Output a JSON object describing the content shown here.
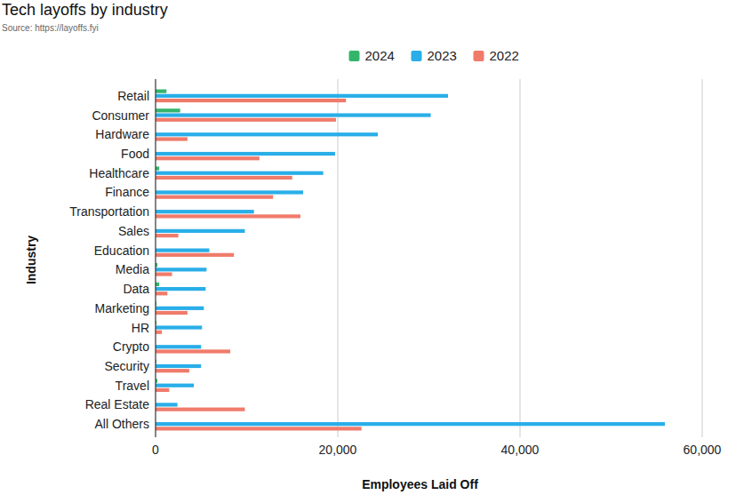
{
  "chart_data": {
    "type": "bar",
    "orientation": "horizontal",
    "title": "Tech layoffs by industry",
    "subtitle": "Source: https://layoffs.fyi",
    "x_label": "Employees Laid Off",
    "y_label": "Industry",
    "categories": [
      "Retail",
      "Consumer",
      "Hardware",
      "Food",
      "Healthcare",
      "Finance",
      "Transportation",
      "Sales",
      "Education",
      "Media",
      "Data",
      "Marketing",
      "HR",
      "Crypto",
      "Security",
      "Travel",
      "Real Estate",
      "All Others"
    ],
    "series": [
      {
        "name": "2024",
        "color": "#34b56c",
        "values": [
          1200,
          2700,
          0,
          0,
          400,
          0,
          0,
          0,
          0,
          200,
          400,
          100,
          100,
          0,
          100,
          200,
          0,
          0
        ]
      },
      {
        "name": "2023",
        "color": "#29aee8",
        "values": [
          32100,
          30200,
          24400,
          19700,
          18400,
          16200,
          10800,
          9800,
          5900,
          5600,
          5500,
          5300,
          5100,
          5000,
          5000,
          4200,
          2400,
          55900
        ]
      },
      {
        "name": "2022",
        "color": "#f07b6b",
        "values": [
          20900,
          19800,
          3500,
          11400,
          15000,
          12900,
          15900,
          2500,
          8600,
          1800,
          1300,
          3500,
          700,
          8200,
          3700,
          1500,
          9800,
          22600
        ]
      }
    ],
    "xlim": [
      0,
      60000
    ],
    "xticks": [
      0,
      {
        "value": 20000,
        "label": "20,000"
      },
      {
        "value": 40000,
        "label": "40,000"
      },
      {
        "value": 60000,
        "label": "60,000"
      }
    ],
    "grid": true,
    "legend": "top"
  }
}
